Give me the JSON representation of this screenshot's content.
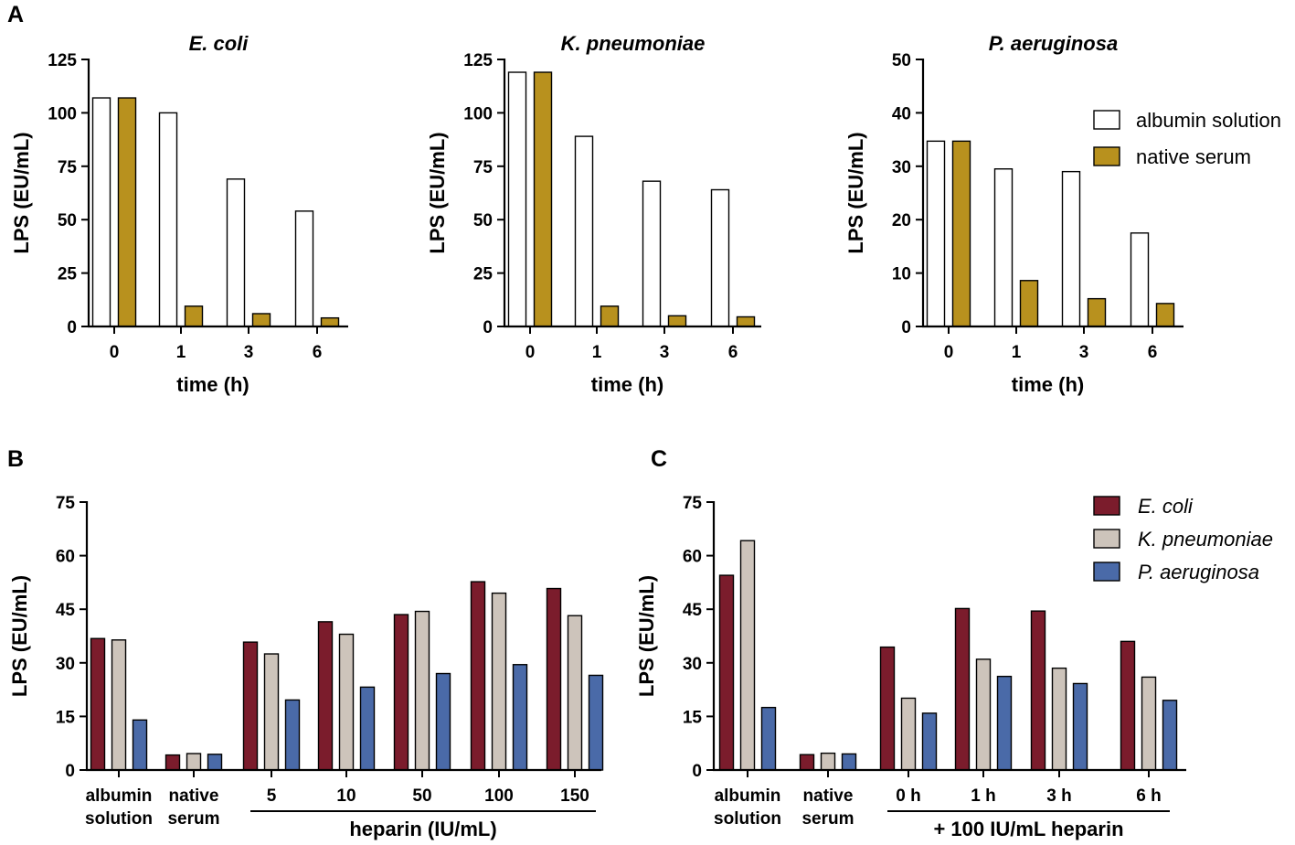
{
  "panel_labels": {
    "A": "A",
    "B": "B",
    "C": "C"
  },
  "colors": {
    "albumin": "#ffffff",
    "native": "#b8911e",
    "ecoli": "#7b1c2c",
    "kpneumoniae": "#cdc4bb",
    "paeruginosa": "#4a6aa8",
    "stroke": "#000000"
  },
  "legend_a": [
    {
      "label": "albumin solution",
      "color": "#ffffff"
    },
    {
      "label": "native serum",
      "color": "#b8911e"
    }
  ],
  "legend_bc": [
    {
      "label": "E. coli",
      "color": "#7b1c2c"
    },
    {
      "label": "K. pneumoniae",
      "color": "#cdc4bb"
    },
    {
      "label": "P. aeruginosa",
      "color": "#4a6aa8"
    }
  ],
  "chart_data": [
    {
      "id": "A1",
      "type": "bar",
      "title": "E. coli",
      "xlabel": "time (h)",
      "ylabel": "LPS (EU/mL)",
      "ylim": [
        0,
        125
      ],
      "yticks": [
        0,
        25,
        50,
        75,
        100,
        125
      ],
      "categories": [
        "0",
        "1",
        "3",
        "6"
      ],
      "series": [
        {
          "name": "albumin solution",
          "values": [
            107,
            100,
            69,
            54
          ]
        },
        {
          "name": "native serum",
          "values": [
            107,
            9.5,
            6,
            4
          ]
        }
      ]
    },
    {
      "id": "A2",
      "type": "bar",
      "title": "K. pneumoniae",
      "xlabel": "time (h)",
      "ylabel": "LPS (EU/mL)",
      "ylim": [
        0,
        125
      ],
      "yticks": [
        0,
        25,
        50,
        75,
        100,
        125
      ],
      "categories": [
        "0",
        "1",
        "3",
        "6"
      ],
      "series": [
        {
          "name": "albumin solution",
          "values": [
            119,
            89,
            68,
            64
          ]
        },
        {
          "name": "native serum",
          "values": [
            119,
            9.5,
            5,
            4.5
          ]
        }
      ]
    },
    {
      "id": "A3",
      "type": "bar",
      "title": "P. aeruginosa",
      "xlabel": "time (h)",
      "ylabel": "LPS (EU/mL)",
      "ylim": [
        0,
        50
      ],
      "yticks": [
        0,
        10,
        20,
        30,
        40,
        50
      ],
      "categories": [
        "0",
        "1",
        "3",
        "6"
      ],
      "series": [
        {
          "name": "albumin solution",
          "values": [
            34.7,
            29.5,
            29,
            17.5
          ]
        },
        {
          "name": "native serum",
          "values": [
            34.7,
            8.6,
            5.2,
            4.3
          ]
        }
      ]
    },
    {
      "id": "B",
      "type": "bar",
      "title": "",
      "xlabel": "heparin (IU/mL)",
      "ylabel": "LPS (EU/mL)",
      "ylim": [
        0,
        75
      ],
      "yticks": [
        0,
        15,
        30,
        45,
        60,
        75
      ],
      "categories": [
        [
          "albumin",
          "solution"
        ],
        [
          "native",
          "serum"
        ],
        [
          "5"
        ],
        [
          "10"
        ],
        [
          "50"
        ],
        [
          "100"
        ],
        [
          "150"
        ]
      ],
      "bracket": {
        "label": "heparin (IU/mL)",
        "from_category": 2,
        "to_category": 6
      },
      "series": [
        {
          "name": "E. coli",
          "values": [
            36.8,
            4.2,
            35.8,
            41.5,
            43.5,
            52.7,
            50.8
          ]
        },
        {
          "name": "K. pneumoniae",
          "values": [
            36.4,
            4.6,
            32.5,
            38,
            44.4,
            49.5,
            43.2
          ]
        },
        {
          "name": "P. aeruginosa",
          "values": [
            14,
            4.4,
            19.6,
            23.2,
            27,
            29.5,
            26.5
          ]
        }
      ]
    },
    {
      "id": "C",
      "type": "bar",
      "title": "",
      "xlabel": "+ 100 IU/mL heparin",
      "ylabel": "LPS (EU/mL)",
      "ylim": [
        0,
        75
      ],
      "yticks": [
        0,
        15,
        30,
        45,
        60,
        75
      ],
      "categories": [
        [
          "albumin",
          "solution"
        ],
        [
          "native",
          "serum"
        ],
        [
          "0 h"
        ],
        [
          "1 h"
        ],
        [
          "3 h"
        ],
        [
          "6 h"
        ]
      ],
      "bracket": {
        "label": "+ 100 IU/mL heparin",
        "from_category": 2,
        "to_category": 5
      },
      "series": [
        {
          "name": "E. coli",
          "values": [
            54.5,
            4.3,
            34.4,
            45.2,
            44.5,
            36
          ]
        },
        {
          "name": "K. pneumoniae",
          "values": [
            64.2,
            4.7,
            20.1,
            31,
            28.5,
            26
          ]
        },
        {
          "name": "P. aeruginosa",
          "values": [
            17.5,
            4.5,
            15.9,
            26.2,
            24.2,
            19.5
          ]
        }
      ]
    }
  ]
}
